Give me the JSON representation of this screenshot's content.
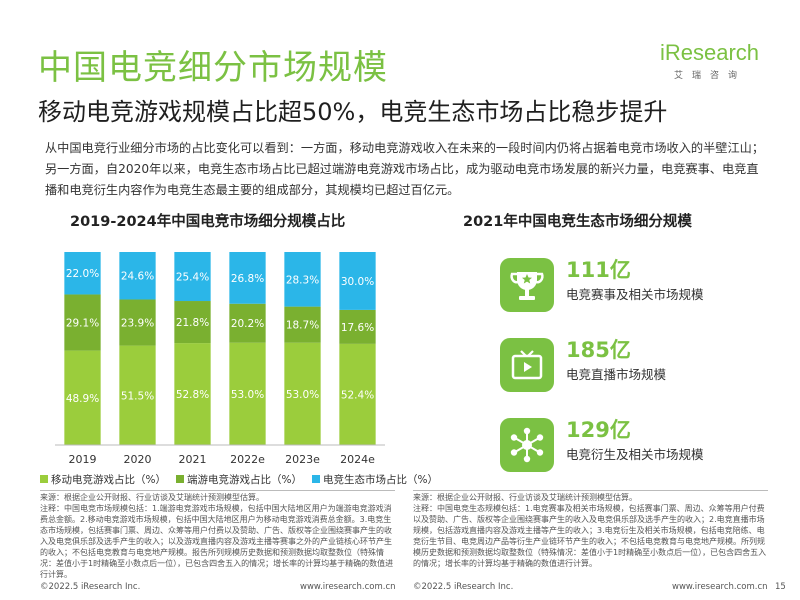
{
  "header": {
    "title": "中国电竞细分市场规模",
    "subtitle": "移动电竞游戏规模占比超50%，电竞生态市场占比稳步提升",
    "logo_text": "iResearch",
    "logo_sub": "艾瑞咨询"
  },
  "intro": "从中国电竞行业细分市场的占比变化可以看到：一方面，移动电竞游戏收入在未来的一段时间内仍将占据着电竞市场收入的半壁江山；另一方面，自2020年以来，电竞生态市场占比已超过端游电竞游戏市场占比，成为驱动电竞市场发展的新兴力量，电竞赛事、电竞直播和电竞衍生内容作为电竞生态最主要的组成部分，其规模均已超过百亿元。",
  "chart_data": [
    {
      "type": "bar",
      "stacked": true,
      "percent": true,
      "title": "2019-2024年中国电竞市场细分规模占比",
      "categories": [
        "2019",
        "2020",
        "2021",
        "2022e",
        "2023e",
        "2024e"
      ],
      "series": [
        {
          "name": "移动电竞游戏占比（%）",
          "color": "#9bcd3c",
          "values": [
            48.9,
            51.5,
            52.8,
            53.0,
            53.0,
            52.4
          ],
          "labels": [
            "48.9%",
            "51.5%",
            "52.8%",
            "53.0%",
            "53.0%",
            "52.4%"
          ]
        },
        {
          "name": "端游电竞游戏占比（%）",
          "color": "#7ab030",
          "values": [
            29.1,
            23.9,
            21.8,
            20.2,
            18.7,
            17.6
          ],
          "labels": [
            "29.1%",
            "23.9%",
            "21.8%",
            "20.2%",
            "18.7%",
            "17.6%"
          ]
        },
        {
          "name": "电竞生态市场占比（%）",
          "color": "#2bb6e8",
          "values": [
            22.0,
            24.6,
            25.4,
            26.8,
            28.3,
            30.0
          ],
          "labels": [
            "22.0%",
            "24.6%",
            "25.4%",
            "26.8%",
            "28.3%",
            "30.0%"
          ]
        }
      ],
      "ylim": [
        0,
        100
      ],
      "grid": false,
      "legend_position": "bottom"
    },
    {
      "type": "table",
      "title": "2021年中国电竞生态市场细分规模",
      "rows": [
        {
          "value": "111亿",
          "label": "电竞赛事及相关市场规模",
          "icon": "trophy-icon"
        },
        {
          "value": "185亿",
          "label": "电竞直播市场规模",
          "icon": "tv-icon"
        },
        {
          "value": "129亿",
          "label": "电竞衍生及相关市场规模",
          "icon": "network-icon"
        }
      ]
    }
  ],
  "notes": {
    "left": "来源：根据企业公开财报、行业访谈及艾瑞统计预测模型估算。\n注释：中国电竞市场规模包括：1.端游电竞游戏市场规模，包括中国大陆地区用户为端游电竞游戏消费总金额。2.移动电竞游戏市场规模，包括中国大陆地区用户为移动电竞游戏消费总金额。3.电竞生态市场规模，包括赛事门票、周边、众筹等用户付费以及赞助、广告、版权等企业围绕赛事产生的收入及电竞俱乐部及选手产生的收入；以及游戏直播内容及游戏主播等赛事之外的产业链核心环节产生的收入；不包括电竞教育与电竞地产规模。报告所列规模历史数据和预测数据均取整数位（特殊情况：差值小于1时精确至小数点后一位），已包含四舍五入的情况；增长率的计算均基于精确的数值进行计算。",
    "right": "来源：根据企业公开财报、行业访谈及艾瑞统计预测模型估算。\n注释：中国电竞生态规模包括：1.电竞赛事及相关市场规模，包括赛事门票、周边、众筹等用户付费以及赞助、广告、版权等企业围绕赛事产生的收入及电竞俱乐部及选手产生的收入；2.电竞直播市场规模，包括游戏直播内容及游戏主播等产生的收入；3.电竞衍生及相关市场规模，包括电竞陪练、电竞衍生节目、电竞周边产品等衍生产业链环节产生的收入；不包括电竞教育与电竞地产规模。所列规模历史数据和预测数据均取整数位（特殊情况：差值小于1时精确至小数点后一位），已包含四舍五入的情况；增长率的计算均基于精确的数值进行计算。"
  },
  "footer": {
    "copyright_left": "©2022.5 iResearch Inc.",
    "site_left": "www.iresearch.com.cn",
    "copyright_right": "©2022.5 iResearch Inc.",
    "site_right": "www.iresearch.com.cn",
    "page_number": "15"
  }
}
